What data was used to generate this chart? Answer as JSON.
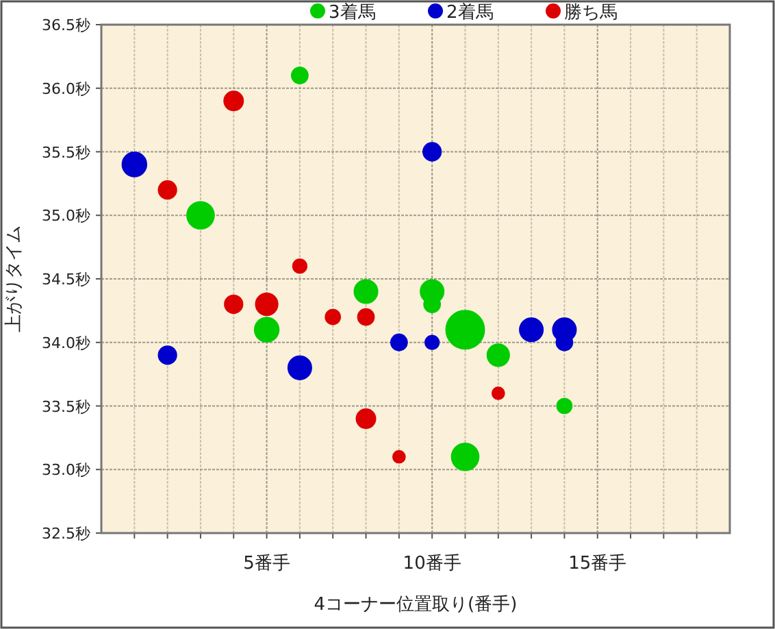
{
  "chart_data": {
    "type": "bubble",
    "xlabel": "4コーナー位置取り(番手)",
    "ylabel": "上がりタイム",
    "xlim": [
      0,
      19
    ],
    "ylim": [
      32.5,
      36.5
    ],
    "xticks": [
      {
        "value": 1,
        "label": null
      },
      {
        "value": 2,
        "label": null
      },
      {
        "value": 3,
        "label": null
      },
      {
        "value": 4,
        "label": null
      },
      {
        "value": 5,
        "label": "5番手"
      },
      {
        "value": 6,
        "label": null
      },
      {
        "value": 7,
        "label": null
      },
      {
        "value": 8,
        "label": null
      },
      {
        "value": 9,
        "label": null
      },
      {
        "value": 10,
        "label": "10番手"
      },
      {
        "value": 11,
        "label": null
      },
      {
        "value": 12,
        "label": null
      },
      {
        "value": 13,
        "label": null
      },
      {
        "value": 14,
        "label": null
      },
      {
        "value": 15,
        "label": "15番手"
      },
      {
        "value": 16,
        "label": null
      },
      {
        "value": 17,
        "label": null
      },
      {
        "value": 18,
        "label": null
      }
    ],
    "yticks": [
      {
        "value": 32.5,
        "label": "32.5秒"
      },
      {
        "value": 33.0,
        "label": "33.0秒"
      },
      {
        "value": 33.5,
        "label": "33.5秒"
      },
      {
        "value": 34.0,
        "label": "34.0秒"
      },
      {
        "value": 34.5,
        "label": "34.5秒"
      },
      {
        "value": 35.0,
        "label": "35.0秒"
      },
      {
        "value": 35.5,
        "label": "35.5秒"
      },
      {
        "value": 36.0,
        "label": "36.0秒"
      },
      {
        "value": 36.5,
        "label": "36.5秒"
      }
    ],
    "grid": true,
    "legend": "top",
    "series": [
      {
        "name": "3着馬",
        "color": "#00cc00",
        "x": [
          6,
          3,
          5,
          8,
          10,
          10,
          11,
          12,
          14,
          11
        ],
        "values": [
          36.1,
          35.0,
          34.1,
          34.4,
          34.4,
          34.3,
          34.1,
          33.9,
          33.5,
          33.1
        ],
        "sizes": [
          0.18,
          0.5,
          0.4,
          0.37,
          0.37,
          0.18,
          1,
          0.33,
          0.15,
          0.5
        ]
      },
      {
        "name": "2着馬",
        "color": "#0000cc",
        "x": [
          1,
          10,
          2,
          6,
          9,
          10,
          13,
          14,
          14
        ],
        "values": [
          35.4,
          35.5,
          33.9,
          33.8,
          34.0,
          34.0,
          34.1,
          34.1,
          34.0
        ],
        "sizes": [
          0.4,
          0.22,
          0.22,
          0.37,
          0.18,
          0.13,
          0.37,
          0.37,
          0.18
        ]
      },
      {
        "name": "勝ち馬",
        "color": "#dd0000",
        "x": [
          4,
          2,
          6,
          4,
          5,
          7,
          8,
          8,
          9,
          12
        ],
        "values": [
          35.9,
          35.2,
          34.6,
          34.3,
          34.3,
          34.2,
          34.2,
          33.4,
          33.1,
          33.6
        ],
        "sizes": [
          0.25,
          0.22,
          0.13,
          0.22,
          0.33,
          0.15,
          0.18,
          0.25,
          0.1,
          0.1
        ]
      }
    ]
  }
}
